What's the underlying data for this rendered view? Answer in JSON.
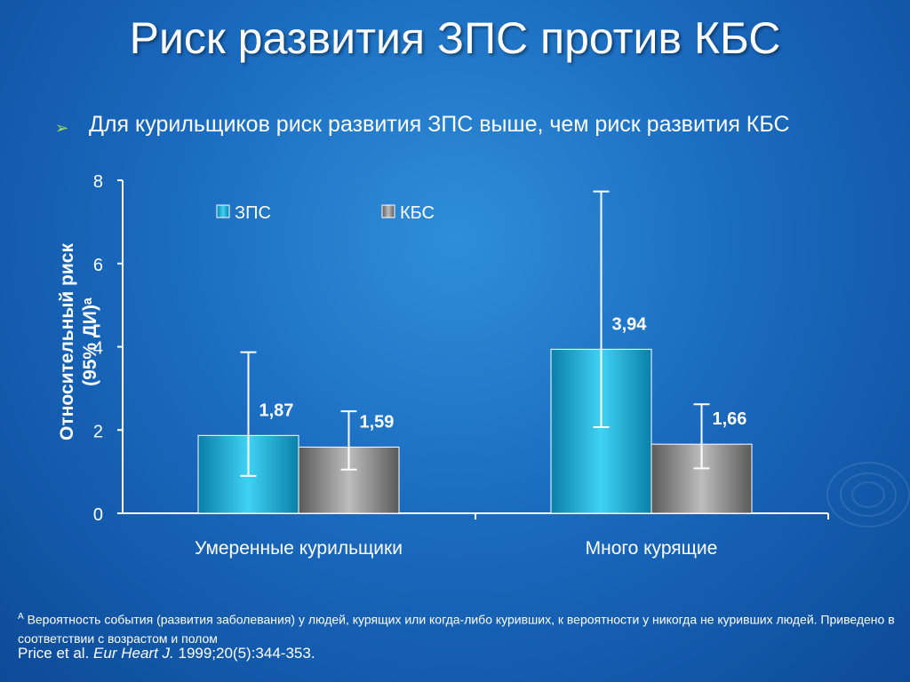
{
  "slide": {
    "title": "Риск развития ЗПС против КБС",
    "bullet": "Для курильщиков риск развития ЗПС выше, чем риск развития КБС",
    "footnote_marker": "A",
    "footnote": "Вероятность события (развития заболевания) у людей, курящих или когда-либо куривших, к вероятности у никогда не куривших людей. Приведено в соответствии с возрастом и полом",
    "citation_authors": "Price et al.",
    "citation_journal": "Eur Heart J.",
    "citation_ref": "1999;20(5):344-353."
  },
  "chart_data": {
    "type": "bar",
    "ylabel_line1": "Относительный риск",
    "ylabel_line2": "(95% ДИ)ᵃ",
    "ylim": [
      0,
      8
    ],
    "yticks": [
      "0",
      "2",
      "4",
      "6",
      "8"
    ],
    "categories": [
      "Умеренные курильщики",
      "Много курящие"
    ],
    "legend_placement": "top",
    "series": [
      {
        "name": "ЗПС",
        "color": "#19b4e6",
        "values": [
          1.87,
          3.94
        ],
        "labels": [
          "1,87",
          "3,94"
        ],
        "ci_low": [
          0.9,
          2.07
        ],
        "ci_high": [
          3.87,
          7.73
        ]
      },
      {
        "name": "КБС",
        "color": "#8a8a8a",
        "values": [
          1.59,
          1.66
        ],
        "labels": [
          "1,59",
          "1,66"
        ],
        "ci_low": [
          1.05,
          1.08
        ],
        "ci_high": [
          2.45,
          2.62
        ]
      }
    ]
  }
}
